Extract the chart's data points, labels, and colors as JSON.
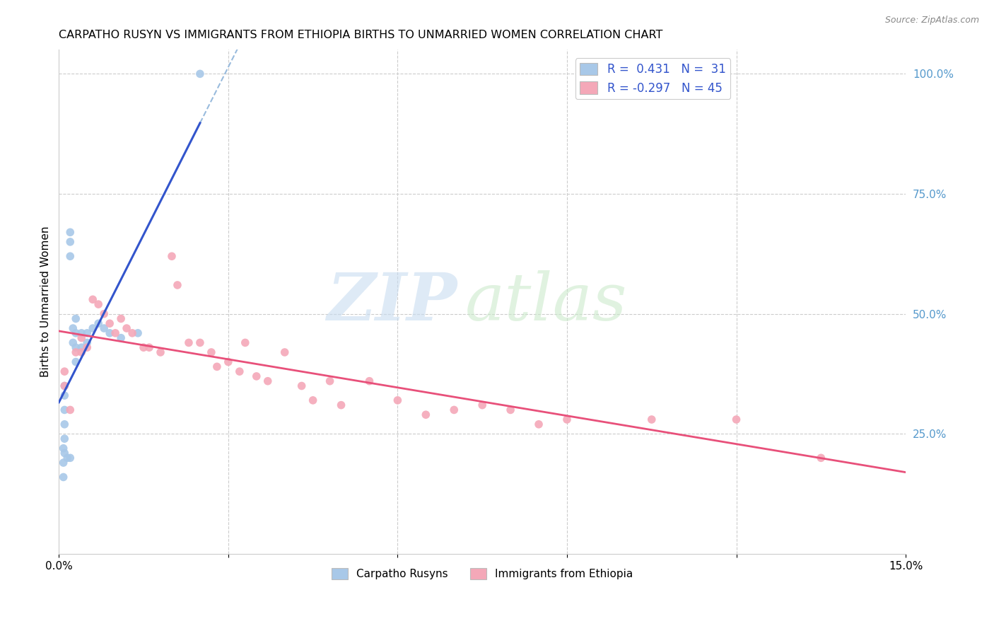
{
  "title": "CARPATHO RUSYN VS IMMIGRANTS FROM ETHIOPIA BIRTHS TO UNMARRIED WOMEN CORRELATION CHART",
  "source": "Source: ZipAtlas.com",
  "ylabel": "Births to Unmarried Women",
  "blue_color": "#a8c8e8",
  "pink_color": "#f4a8b8",
  "blue_line_color": "#3355cc",
  "pink_line_color": "#e8507a",
  "dash_line_color": "#99bbdd",
  "xlim": [
    0.0,
    0.15
  ],
  "ylim": [
    0.0,
    1.05
  ],
  "grid_color": "#cccccc",
  "grid_style": "--",
  "blue_x": [
    0.0008,
    0.0008,
    0.0008,
    0.001,
    0.001,
    0.001,
    0.001,
    0.001,
    0.001,
    0.0015,
    0.002,
    0.002,
    0.002,
    0.002,
    0.0025,
    0.0025,
    0.003,
    0.003,
    0.003,
    0.003,
    0.004,
    0.004,
    0.005,
    0.005,
    0.006,
    0.007,
    0.008,
    0.009,
    0.011,
    0.014,
    0.025
  ],
  "blue_y": [
    0.22,
    0.19,
    0.16,
    0.35,
    0.33,
    0.3,
    0.27,
    0.24,
    0.21,
    0.2,
    0.67,
    0.65,
    0.62,
    0.2,
    0.47,
    0.44,
    0.49,
    0.46,
    0.43,
    0.4,
    0.46,
    0.43,
    0.46,
    0.44,
    0.47,
    0.48,
    0.47,
    0.46,
    0.45,
    0.46,
    1.0
  ],
  "pink_x": [
    0.001,
    0.001,
    0.002,
    0.003,
    0.004,
    0.004,
    0.005,
    0.006,
    0.007,
    0.008,
    0.009,
    0.01,
    0.011,
    0.012,
    0.013,
    0.015,
    0.016,
    0.018,
    0.02,
    0.021,
    0.023,
    0.025,
    0.027,
    0.028,
    0.03,
    0.032,
    0.033,
    0.035,
    0.037,
    0.04,
    0.043,
    0.045,
    0.048,
    0.05,
    0.055,
    0.06,
    0.065,
    0.07,
    0.075,
    0.08,
    0.085,
    0.09,
    0.105,
    0.12,
    0.135
  ],
  "pink_y": [
    0.38,
    0.35,
    0.3,
    0.42,
    0.45,
    0.42,
    0.43,
    0.53,
    0.52,
    0.5,
    0.48,
    0.46,
    0.49,
    0.47,
    0.46,
    0.43,
    0.43,
    0.42,
    0.62,
    0.56,
    0.44,
    0.44,
    0.42,
    0.39,
    0.4,
    0.38,
    0.44,
    0.37,
    0.36,
    0.42,
    0.35,
    0.32,
    0.36,
    0.31,
    0.36,
    0.32,
    0.29,
    0.3,
    0.31,
    0.3,
    0.27,
    0.28,
    0.28,
    0.28,
    0.2
  ],
  "right_ytick_vals": [
    0.25,
    0.5,
    0.75,
    1.0
  ],
  "right_ytick_labels": [
    "25.0%",
    "50.0%",
    "75.0%",
    "100.0%"
  ]
}
